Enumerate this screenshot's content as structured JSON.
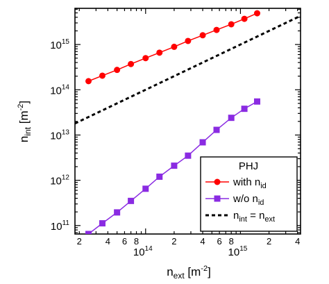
{
  "chart_data": {
    "type": "line",
    "x_scale": "log",
    "y_scale": "log",
    "xlim": [
      18000000000000.0,
      4300000000000000.0
    ],
    "ylim": [
      65000000000.0,
      6300000000000000.0
    ],
    "xlabel": {
      "base": "n",
      "sub": "ext",
      "unit_open": " [m",
      "unit_sup": "-2",
      "unit_close": "]"
    },
    "ylabel": {
      "base": "n",
      "sub": "int",
      "unit_open": " [m",
      "unit_sup": "-2",
      "unit_close": "]"
    },
    "x_major_ticks": [
      {
        "value": 100000000000000.0,
        "base": "10",
        "exp": "14"
      },
      {
        "value": 1000000000000000.0,
        "base": "10",
        "exp": "15"
      }
    ],
    "x_minor_labels": [
      {
        "value": 20000000000000.0,
        "label": "2"
      },
      {
        "value": 40000000000000.0,
        "label": "4"
      },
      {
        "value": 60000000000000.0,
        "label": "6"
      },
      {
        "value": 80000000000000.0,
        "label": "8"
      },
      {
        "value": 200000000000000.0,
        "label": "2"
      },
      {
        "value": 400000000000000.0,
        "label": "4"
      },
      {
        "value": 600000000000000.0,
        "label": "6"
      },
      {
        "value": 800000000000000.0,
        "label": "8"
      },
      {
        "value": 2000000000000000.0,
        "label": "2"
      },
      {
        "value": 4000000000000000.0,
        "label": "4"
      }
    ],
    "y_major_ticks": [
      {
        "value": 100000000000.0,
        "base": "10",
        "exp": "11"
      },
      {
        "value": 1000000000000.0,
        "base": "10",
        "exp": "12"
      },
      {
        "value": 10000000000000.0,
        "base": "10",
        "exp": "13"
      },
      {
        "value": 100000000000000.0,
        "base": "10",
        "exp": "14"
      },
      {
        "value": 1000000000000000.0,
        "base": "10",
        "exp": "15"
      }
    ],
    "legend": {
      "title": "PHJ",
      "position": "lower-right",
      "entries": [
        {
          "series": "with",
          "text": "with n",
          "sub": "id"
        },
        {
          "series": "without",
          "text": "w/o n",
          "sub": "id"
        },
        {
          "series": "equal",
          "text_a": "n",
          "sub_a": "int",
          "mid": " = n",
          "sub_b": "ext"
        }
      ]
    },
    "series": [
      {
        "name": "with n_id",
        "color": "#ff0000",
        "marker": "circle",
        "x": [
          25000000000000.0,
          35000000000000.0,
          50000000000000.0,
          70000000000000.0,
          100000000000000.0,
          140000000000000.0,
          200000000000000.0,
          280000000000000.0,
          400000000000000.0,
          560000000000000.0,
          800000000000000.0,
          1100000000000000.0,
          1500000000000000.0
        ],
        "y": [
          155000000000000.0,
          205000000000000.0,
          275000000000000.0,
          370000000000000.0,
          500000000000000.0,
          660000000000000.0,
          890000000000000.0,
          1200000000000000.0,
          1600000000000000.0,
          2100000000000000.0,
          2800000000000000.0,
          3700000000000000.0,
          4900000000000000.0
        ]
      },
      {
        "name": "w/o n_id",
        "color": "#8a2be2",
        "marker": "square",
        "x": [
          25000000000000.0,
          35000000000000.0,
          50000000000000.0,
          70000000000000.0,
          100000000000000.0,
          140000000000000.0,
          200000000000000.0,
          280000000000000.0,
          400000000000000.0,
          560000000000000.0,
          800000000000000.0,
          1100000000000000.0,
          1500000000000000.0
        ],
        "y": [
          65000000000.0,
          112000000000.0,
          195000000000.0,
          350000000000.0,
          650000000000.0,
          1200000000000.0,
          2100000000000.0,
          3500000000000.0,
          6900000000000.0,
          13000000000000.0,
          24000000000000.0,
          38000000000000.0,
          55000000000000.0
        ]
      },
      {
        "name": "n_int = n_ext",
        "color": "#000000",
        "style": "dashed",
        "x": [
          18000000000000.0,
          4300000000000000.0
        ],
        "y": [
          18000000000000.0,
          4300000000000000.0
        ]
      }
    ]
  }
}
